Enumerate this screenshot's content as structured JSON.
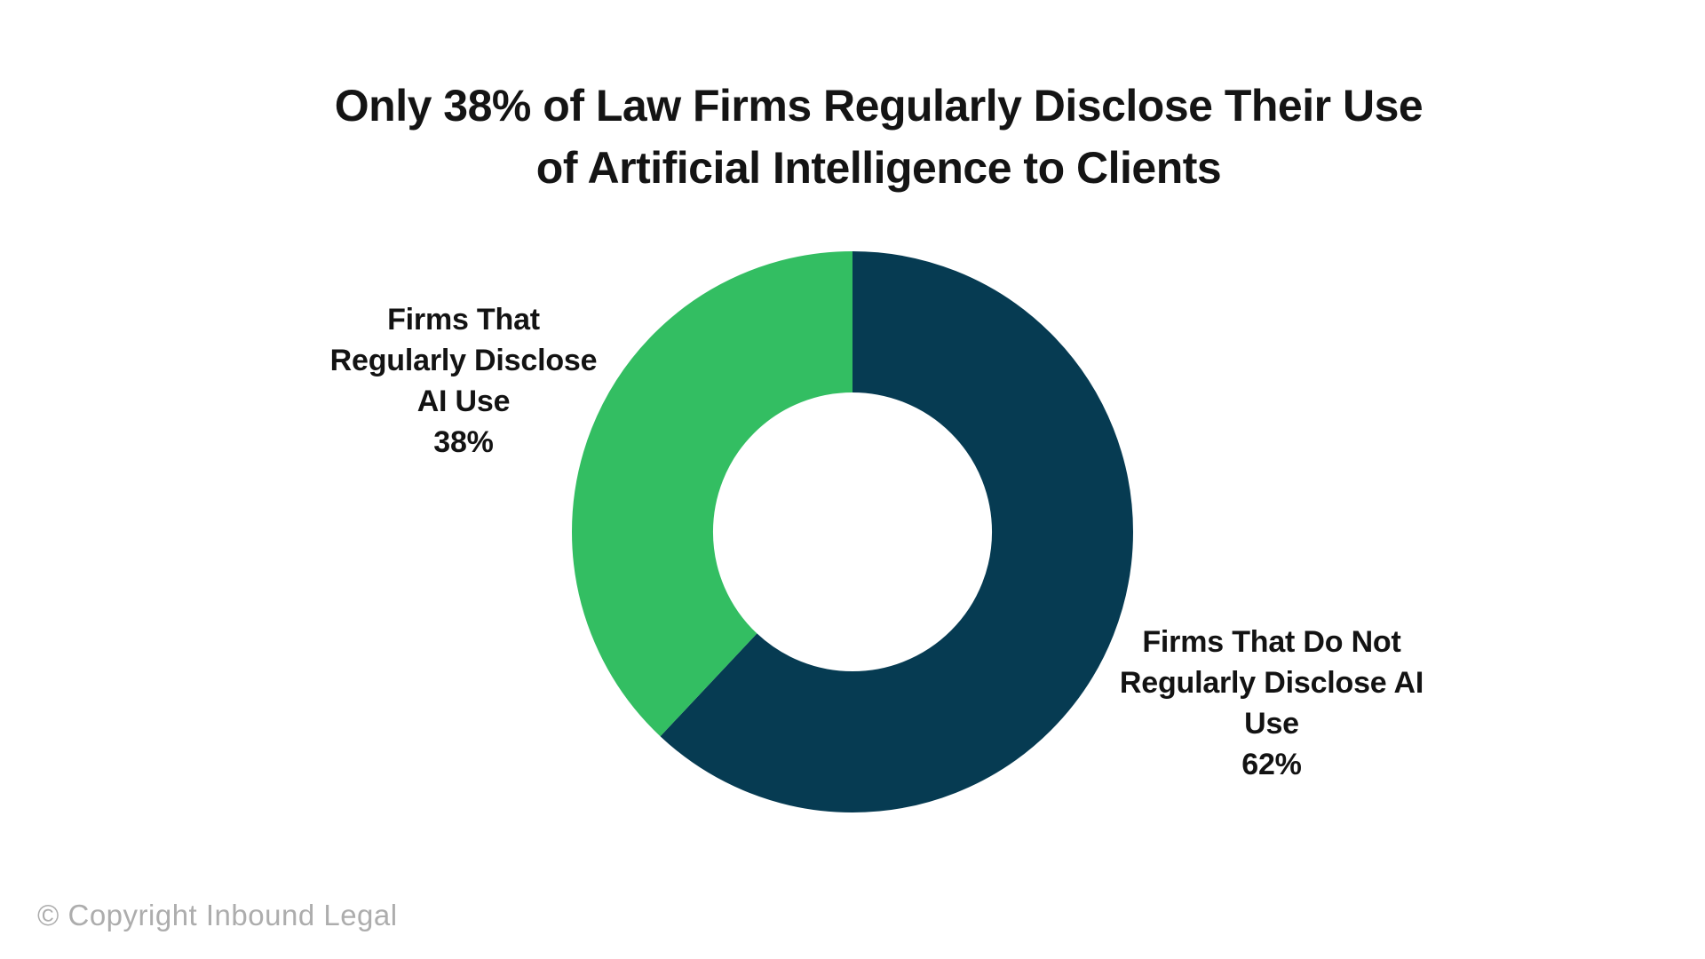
{
  "page": {
    "background_color": "#FFFFFF"
  },
  "title": {
    "text": "Only 38% of Law Firms Regularly Disclose Their Use of Artificial Intelligence to Clients",
    "lines": [
      "Only 38% of Law Firms Regularly Disclose Their Use",
      "of Artificial Intelligence to Clients"
    ],
    "color": "#141414"
  },
  "chart_data": {
    "type": "pie",
    "subtype": "donut",
    "title": "Only 38% of Law Firms Regularly Disclose Their Use of Artificial Intelligence to Clients",
    "labels": [
      "Firms That Do Not Regularly Disclose AI Use",
      "Firms That Regularly Disclose AI Use"
    ],
    "values": [
      62,
      38
    ],
    "unit": "%",
    "colors": [
      "#063B52",
      "#33BE62"
    ],
    "start_angle_deg": 0,
    "direction": "clockwise",
    "inner_radius_ratio": 0.5,
    "legend": "none",
    "data_labels": "outside"
  },
  "annotations": {
    "left_label": {
      "slice": "Firms That Regularly Disclose AI Use",
      "lines": [
        "Firms That",
        "Regularly Disclose",
        "AI Use",
        "38%"
      ],
      "color": "#131313"
    },
    "right_label": {
      "slice": "Firms That Do Not Regularly Disclose AI Use",
      "lines": [
        "Firms That Do Not",
        "Regularly Disclose AI",
        "Use",
        "62%"
      ],
      "color": "#131313"
    }
  },
  "footer": {
    "copyright": "© Copyright Inbound Legal",
    "color": "#ADADAD"
  }
}
